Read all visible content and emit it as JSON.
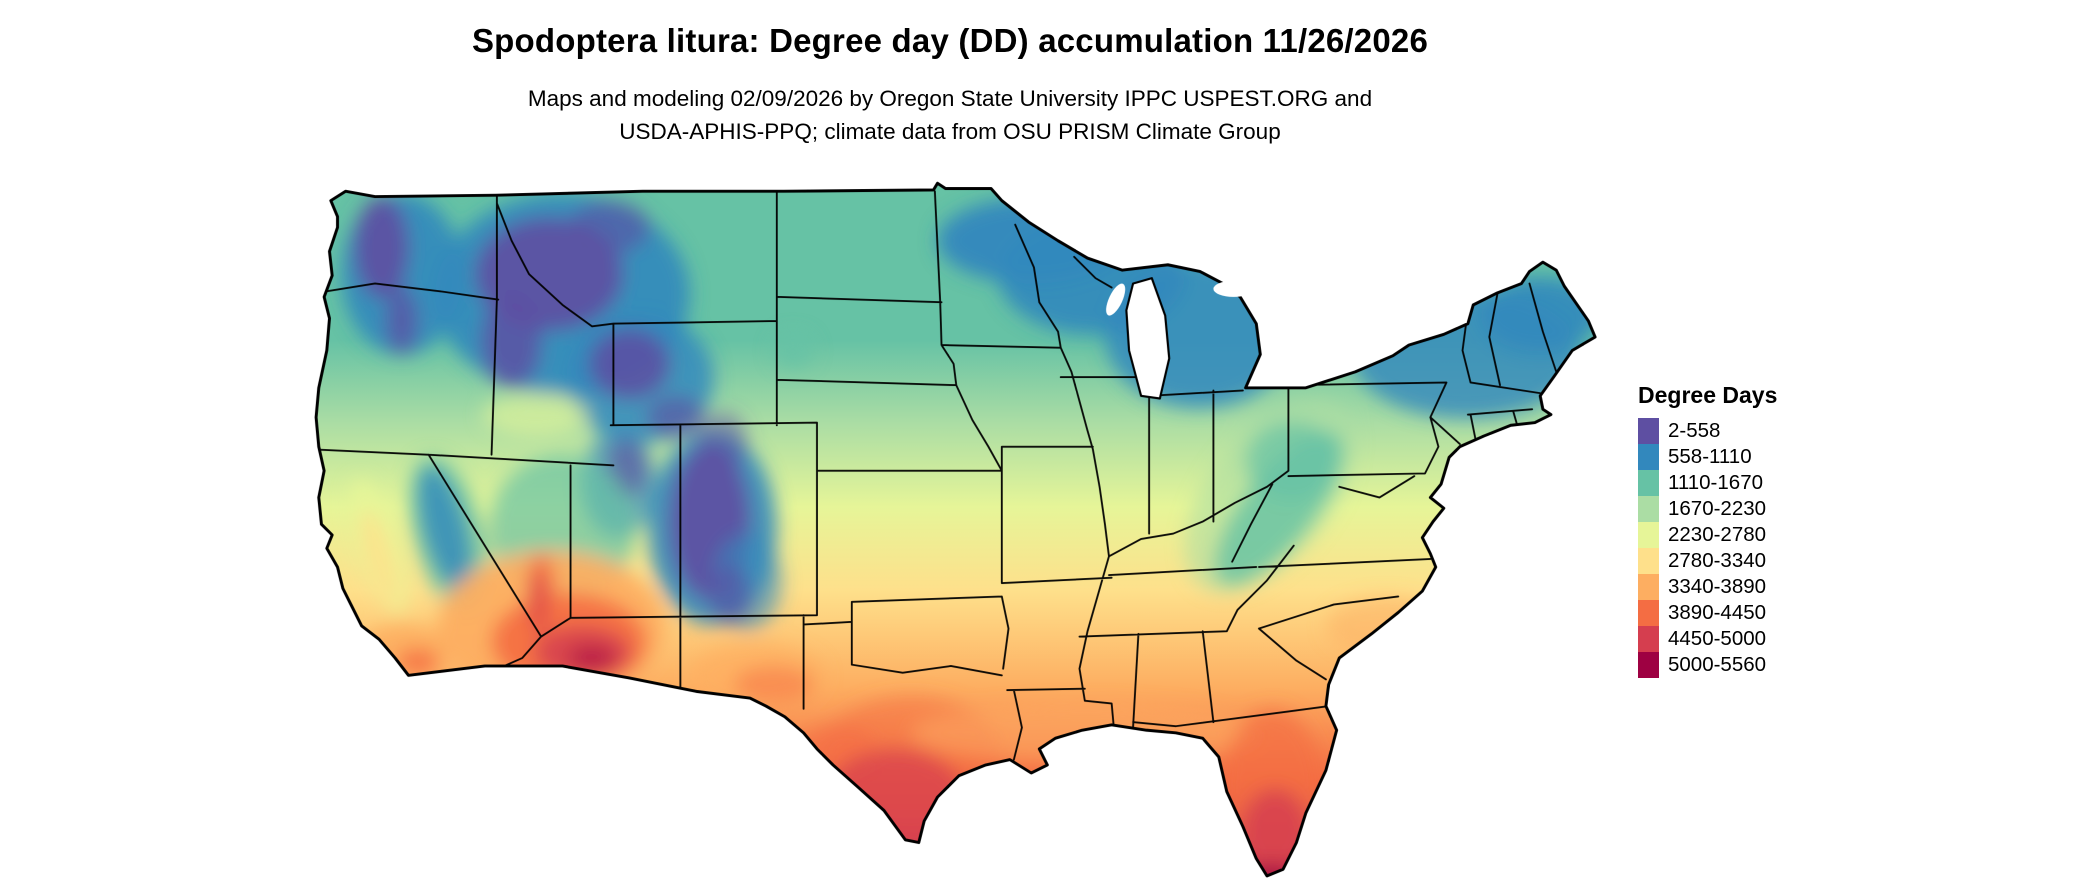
{
  "header": {
    "title": "Spodoptera litura: Degree day (DD) accumulation 11/26/2026",
    "subtitle_line1": "Maps and modeling 02/09/2026 by Oregon State University IPPC USPEST.ORG and",
    "subtitle_line2": "USDA-APHIS-PPQ; climate data from OSU PRISM Climate Group"
  },
  "legend": {
    "title": "Degree Days",
    "classes": [
      {
        "label": "2-558",
        "min": 2,
        "max": 558,
        "color": "#5e4fa2"
      },
      {
        "label": "558-1110",
        "min": 558,
        "max": 1110,
        "color": "#3288bd"
      },
      {
        "label": "1110-1670",
        "min": 1110,
        "max": 1670,
        "color": "#66c2a5"
      },
      {
        "label": "1670-2230",
        "min": 1670,
        "max": 2230,
        "color": "#abdda4"
      },
      {
        "label": "2230-2780",
        "min": 2230,
        "max": 2780,
        "color": "#e6f598"
      },
      {
        "label": "2780-3340",
        "min": 2780,
        "max": 3340,
        "color": "#fee08b"
      },
      {
        "label": "3340-3890",
        "min": 3340,
        "max": 3890,
        "color": "#fdae61"
      },
      {
        "label": "3890-4450",
        "min": 3890,
        "max": 4450,
        "color": "#f46d43"
      },
      {
        "label": "4450-5000",
        "min": 4450,
        "max": 5000,
        "color": "#d53e4f"
      },
      {
        "label": "5000-5560",
        "min": 5000,
        "max": 5560,
        "color": "#9e0142"
      }
    ]
  },
  "chart_data": {
    "type": "heatmap",
    "geography": "Conterminous United States with state boundaries",
    "title": "Spodoptera litura: Degree day (DD) accumulation 11/26/2026",
    "subtitle": "Maps and modeling 02/09/2026 by Oregon State University IPPC USPEST.ORG and USDA-APHIS-PPQ; climate data from OSU PRISM Climate Group",
    "legend_title": "Degree Days",
    "units": "degree days (DD)",
    "legend_position": "right",
    "classes": [
      {
        "range": "2-558",
        "min": 2,
        "max": 558,
        "color": "#5e4fa2"
      },
      {
        "range": "558-1110",
        "min": 558,
        "max": 1110,
        "color": "#3288bd"
      },
      {
        "range": "1110-1670",
        "min": 1110,
        "max": 1670,
        "color": "#66c2a5"
      },
      {
        "range": "1670-2230",
        "min": 1670,
        "max": 2230,
        "color": "#abdda4"
      },
      {
        "range": "2230-2780",
        "min": 2230,
        "max": 2780,
        "color": "#e6f598"
      },
      {
        "range": "2780-3340",
        "min": 2780,
        "max": 3340,
        "color": "#fee08b"
      },
      {
        "range": "3340-3890",
        "min": 3340,
        "max": 3890,
        "color": "#fdae61"
      },
      {
        "range": "3890-4450",
        "min": 3890,
        "max": 4450,
        "color": "#f46d43"
      },
      {
        "range": "4450-5000",
        "min": 4450,
        "max": 5000,
        "color": "#d53e4f"
      },
      {
        "range": "5000-5560",
        "min": 5000,
        "max": 5560,
        "color": "#9e0142"
      }
    ]
  }
}
